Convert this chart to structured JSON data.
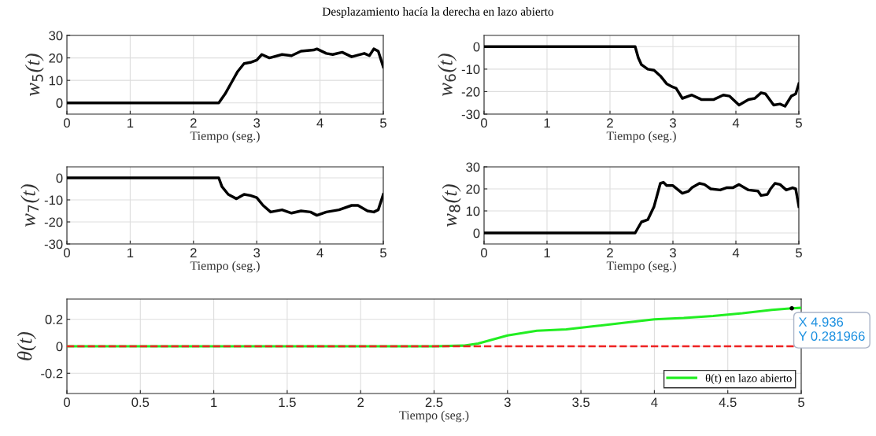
{
  "chart_data": [
    {
      "type": "line",
      "title": "Desplazamiento hacía la derecha en lazo abierto",
      "xlabel": "Tiempo (seg.)",
      "ylabel": "w$_{5}$(t)",
      "xlim": [
        0,
        5
      ],
      "xticks": [
        0,
        1,
        2,
        3,
        4,
        5
      ],
      "ylim": [
        -5,
        30
      ],
      "yticks": [
        0,
        10,
        20,
        30
      ],
      "grid": true,
      "x": [
        0,
        2.4,
        2.5,
        2.6,
        2.7,
        2.8,
        2.9,
        3.0,
        3.08,
        3.2,
        3.4,
        3.55,
        3.7,
        3.9,
        3.95,
        4.1,
        4.2,
        4.35,
        4.5,
        4.7,
        4.78,
        4.85,
        4.92,
        5.0
      ],
      "series": [
        {
          "color": "#000000",
          "values": [
            0,
            0,
            4,
            9,
            14,
            17.5,
            18,
            19,
            21.5,
            20,
            21.5,
            21,
            23,
            23.5,
            24,
            22,
            21.5,
            22.5,
            20.5,
            22,
            21,
            24,
            23,
            16
          ]
        }
      ]
    },
    {
      "type": "line",
      "xlabel": "Tiempo (seg.)",
      "ylabel": "w$_{6}$(t)",
      "xlim": [
        0,
        5
      ],
      "xticks": [
        0,
        1,
        2,
        3,
        4,
        5
      ],
      "ylim": [
        -30,
        5
      ],
      "yticks": [
        -30,
        -20,
        -10,
        0
      ],
      "grid": true,
      "x": [
        0,
        2.4,
        2.45,
        2.5,
        2.6,
        2.7,
        2.8,
        2.9,
        3.0,
        3.05,
        3.15,
        3.3,
        3.45,
        3.65,
        3.8,
        3.9,
        4.05,
        4.2,
        4.3,
        4.4,
        4.47,
        4.6,
        4.7,
        4.78,
        4.88,
        4.95,
        5.0
      ],
      "series": [
        {
          "color": "#000000",
          "values": [
            0,
            0,
            -5,
            -8,
            -10,
            -10.5,
            -13,
            -16.5,
            -18,
            -18.5,
            -23,
            -21.5,
            -23.5,
            -23.5,
            -21.5,
            -22,
            -26,
            -23.5,
            -23,
            -20.5,
            -21,
            -26,
            -25.5,
            -26.5,
            -22,
            -21,
            -16.5
          ]
        }
      ]
    },
    {
      "type": "line",
      "xlabel": "Tiempo (seg.)",
      "ylabel": "w$_{7}$(t)",
      "xlim": [
        0,
        5
      ],
      "xticks": [
        0,
        1,
        2,
        3,
        4,
        5
      ],
      "ylim": [
        -30,
        5
      ],
      "yticks": [
        -30,
        -20,
        -10,
        0
      ],
      "grid": true,
      "x": [
        0,
        2.4,
        2.45,
        2.55,
        2.68,
        2.8,
        2.9,
        3.0,
        3.1,
        3.22,
        3.4,
        3.55,
        3.7,
        3.85,
        3.95,
        4.1,
        4.3,
        4.5,
        4.6,
        4.75,
        4.85,
        4.92,
        5.0
      ],
      "series": [
        {
          "color": "#000000",
          "values": [
            0,
            0,
            -4,
            -7.5,
            -9.5,
            -7.5,
            -8,
            -9,
            -12.5,
            -15.5,
            -14.5,
            -16,
            -15,
            -15.5,
            -17,
            -15.5,
            -14.5,
            -12.5,
            -12.5,
            -15,
            -15.5,
            -14.5,
            -7.5
          ]
        }
      ]
    },
    {
      "type": "line",
      "xlabel": "Tiempo (seg.)",
      "ylabel": "w$_{8}$(t)",
      "xlim": [
        0,
        5
      ],
      "xticks": [
        0,
        1,
        2,
        3,
        4,
        5
      ],
      "ylim": [
        -5,
        30
      ],
      "yticks": [
        0,
        10,
        20,
        30
      ],
      "grid": true,
      "x": [
        0,
        2.4,
        2.5,
        2.6,
        2.7,
        2.8,
        2.85,
        2.9,
        3.0,
        3.15,
        3.25,
        3.3,
        3.42,
        3.5,
        3.6,
        3.75,
        3.85,
        3.95,
        4.05,
        4.2,
        4.35,
        4.4,
        4.5,
        4.55,
        4.62,
        4.7,
        4.8,
        4.9,
        4.95,
        5.0
      ],
      "series": [
        {
          "color": "#000000",
          "values": [
            0,
            0,
            5,
            6,
            12,
            22.5,
            23,
            21.5,
            21.5,
            18,
            19,
            20.5,
            22.5,
            22,
            20,
            19.5,
            20.5,
            20.5,
            22,
            19.5,
            19,
            17,
            17.5,
            20,
            22.5,
            22,
            19.5,
            20.5,
            20,
            12
          ]
        }
      ]
    },
    {
      "type": "line",
      "xlabel": "Tiempo (seg.)",
      "ylabel": "θ(t)",
      "xlim": [
        0,
        5
      ],
      "xticks": [
        0,
        0.5,
        1,
        1.5,
        2,
        2.5,
        3,
        3.5,
        4,
        4.5,
        5
      ],
      "ylim": [
        -0.35,
        0.35
      ],
      "yticks": [
        -0.2,
        0,
        0.2
      ],
      "grid": true,
      "legend": "bottom right",
      "x": [
        0,
        0.5,
        1,
        1.5,
        2,
        2.5,
        2.7,
        2.8,
        3.0,
        3.2,
        3.4,
        3.6,
        3.8,
        4.0,
        4.2,
        4.4,
        4.6,
        4.8,
        4.936,
        5.0
      ],
      "series": [
        {
          "name": "θ(t) en lazo abierto",
          "color": "#22ee22",
          "values": [
            0,
            0,
            0,
            0,
            0,
            0,
            0.005,
            0.02,
            0.08,
            0.115,
            0.125,
            0.15,
            0.175,
            0.2,
            0.21,
            0.225,
            0.245,
            0.27,
            0.282,
            0.285
          ]
        }
      ],
      "ref_lines": [
        {
          "axis": "y",
          "value": 0,
          "color": "#ee2222",
          "line_style": "dashed"
        }
      ],
      "annotations": [
        {
          "text": "X 4.936\nY 0.281966",
          "x": 4.936,
          "y": 0.281966
        }
      ]
    }
  ]
}
